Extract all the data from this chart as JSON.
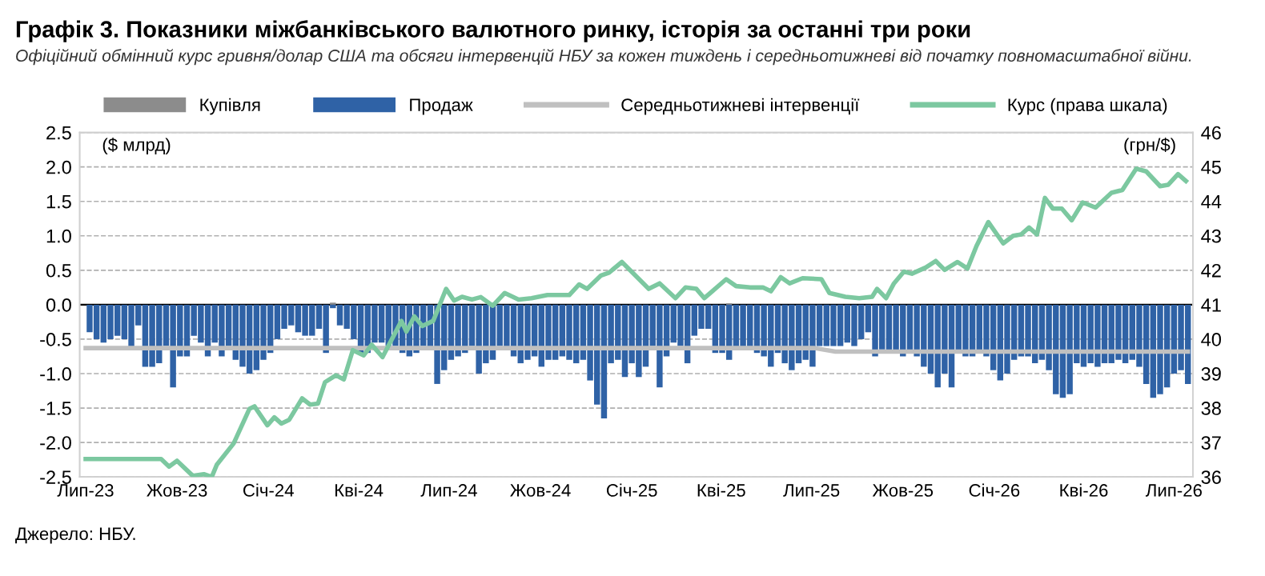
{
  "chart_data": {
    "type": "bar",
    "title": "Графік 3. Показники міжбанківського валютного ринку, історія за останні три роки",
    "subtitle": "Офіційний обмінний курс гривня/долар США та обсяги інтервенцій НБУ за кожен тиждень і середньотижневі від початку повномасштабної війни.",
    "ylabel": "($ млрд)",
    "y2label": "(грн/$)",
    "annotations": [
      "Джерело: НБУ."
    ],
    "x": [
      "2023-07-05",
      "2023-07-12",
      "2023-07-19",
      "2023-07-26",
      "2023-08-02",
      "2023-08-09",
      "2023-08-16",
      "2023-08-23",
      "2023-08-30",
      "2023-09-06",
      "2023-09-13",
      "2023-09-20",
      "2023-09-27",
      "2023-10-04",
      "2023-10-11",
      "2023-10-18",
      "2023-10-25",
      "2023-11-01",
      "2023-11-08",
      "2023-11-15",
      "2023-11-22",
      "2023-11-29",
      "2023-12-06",
      "2023-12-13",
      "2023-12-20",
      "2023-12-27",
      "2024-01-03",
      "2024-01-10",
      "2024-01-17",
      "2024-01-24",
      "2024-01-31",
      "2024-02-07",
      "2024-02-14",
      "2024-02-21",
      "2024-02-28",
      "2024-03-06",
      "2024-03-13",
      "2024-03-20",
      "2024-03-27",
      "2024-04-03",
      "2024-04-10",
      "2024-04-17",
      "2024-04-24",
      "2024-05-01",
      "2024-05-08",
      "2024-05-15",
      "2024-05-22",
      "2024-05-29",
      "2024-06-05",
      "2024-06-12",
      "2024-06-19",
      "2024-06-26",
      "2024-07-03",
      "2024-07-10",
      "2024-07-17",
      "2024-07-24",
      "2024-07-31",
      "2024-08-07",
      "2024-08-14",
      "2024-08-21",
      "2024-08-28",
      "2024-09-04",
      "2024-09-11",
      "2024-09-18",
      "2024-09-25",
      "2024-10-02",
      "2024-10-09",
      "2024-10-16",
      "2024-10-23",
      "2024-10-30",
      "2024-11-06",
      "2024-11-13",
      "2024-11-20",
      "2024-11-27",
      "2024-12-04",
      "2024-12-11",
      "2024-12-18",
      "2024-12-25",
      "2025-01-01",
      "2025-01-08",
      "2025-01-15",
      "2025-01-22",
      "2025-01-29",
      "2025-02-05",
      "2025-02-12",
      "2025-02-19",
      "2025-02-26",
      "2025-03-05",
      "2025-03-12",
      "2025-03-19",
      "2025-03-26",
      "2025-04-02",
      "2025-04-09",
      "2025-04-16",
      "2025-04-23",
      "2025-04-30",
      "2025-05-07",
      "2025-05-14",
      "2025-05-21",
      "2025-05-28",
      "2025-06-04",
      "2025-06-11",
      "2025-06-18",
      "2025-06-25",
      "2025-07-02",
      "2025-07-09",
      "2025-07-16",
      "2025-07-23",
      "2025-07-30",
      "2025-08-06",
      "2025-08-13",
      "2025-08-20",
      "2025-08-27",
      "2025-09-03",
      "2025-09-10",
      "2025-09-17",
      "2025-09-24",
      "2025-10-01",
      "2025-10-08",
      "2025-10-15",
      "2025-10-22",
      "2025-10-29",
      "2025-11-05",
      "2025-11-12",
      "2025-11-19",
      "2025-11-26",
      "2025-12-03",
      "2025-12-10",
      "2025-12-17",
      "2025-12-24",
      "2025-12-31",
      "2026-01-07",
      "2026-01-14",
      "2026-01-21",
      "2026-01-28",
      "2026-02-04",
      "2026-02-11",
      "2026-02-18",
      "2026-02-25",
      "2026-03-04",
      "2026-03-11",
      "2026-03-18",
      "2026-03-25",
      "2026-04-01",
      "2026-04-08",
      "2026-04-15",
      "2026-04-22",
      "2026-04-29",
      "2026-05-06",
      "2026-05-13",
      "2026-05-20",
      "2026-05-27",
      "2026-06-03",
      "2026-06-10",
      "2026-06-17",
      "2026-06-24",
      "2026-07-01",
      "2026-07-08",
      "2026-07-15"
    ],
    "series": [
      {
        "name": "Купівля",
        "color": "#8c8c8c",
        "x": [
          "2024-03-06",
          "2025-04-09"
        ],
        "values": [
          0.03,
          0.02
        ]
      },
      {
        "name": "Продаж",
        "color": "#2f62a6",
        "values": [
          -0.4,
          -0.5,
          -0.55,
          -0.5,
          -0.45,
          -0.5,
          -0.65,
          -0.3,
          -0.9,
          -0.9,
          -0.85,
          -0.6,
          -1.2,
          -0.75,
          -0.75,
          -0.45,
          -0.55,
          -0.75,
          -0.55,
          -0.75,
          -0.6,
          -0.8,
          -0.9,
          -1.0,
          -0.95,
          -0.8,
          -0.7,
          -0.5,
          -0.35,
          -0.3,
          -0.4,
          -0.45,
          -0.45,
          -0.35,
          -0.7,
          -0.05,
          -0.3,
          -0.35,
          -0.5,
          -0.7,
          -0.7,
          -0.55,
          -0.55,
          -0.6,
          -0.6,
          -0.7,
          -0.75,
          -0.7,
          -0.6,
          -0.65,
          -1.15,
          -0.95,
          -0.8,
          -0.75,
          -0.7,
          -0.6,
          -1.0,
          -0.85,
          -0.8,
          -0.6,
          -0.65,
          -0.75,
          -0.85,
          -0.8,
          -0.75,
          -0.9,
          -0.8,
          -0.8,
          -0.75,
          -0.8,
          -0.85,
          -0.8,
          -1.1,
          -1.45,
          -1.65,
          -0.85,
          -0.8,
          -1.05,
          -0.85,
          -1.05,
          -0.9,
          -0.6,
          -1.2,
          -0.75,
          -0.55,
          -0.6,
          -0.85,
          -0.45,
          -0.35,
          -0.35,
          -0.7,
          -0.7,
          -0.8,
          -0.65,
          -0.65,
          -0.65,
          -0.7,
          -0.75,
          -0.9,
          -0.7,
          -0.85,
          -0.95,
          -0.85,
          -0.8,
          -0.9,
          -0.6,
          -0.6,
          -0.6,
          -0.6,
          -0.55,
          -0.6,
          -0.5,
          -0.4,
          -0.75,
          -0.65,
          -0.7,
          -0.7,
          -0.75,
          -0.7,
          -0.75,
          -0.9,
          -1.0,
          -1.2,
          -1.0,
          -1.2,
          -0.7,
          -0.75,
          -0.75,
          -0.7,
          -0.75,
          -0.95,
          -1.1,
          -1.0,
          -0.8,
          -0.75,
          -0.75,
          -0.85,
          -0.8,
          -0.95,
          -1.3,
          -1.35,
          -1.3,
          -0.85,
          -0.9,
          -0.85,
          -0.9,
          -0.85,
          -0.85,
          -0.8,
          -0.85,
          -0.8,
          -0.9,
          -1.15,
          -1.35,
          -1.3,
          -1.2,
          -1.0,
          -0.95,
          -1.15
        ]
      },
      {
        "name": "Середньотижневі інтервенції",
        "type": "line",
        "color": "#c0c0c0",
        "x": [
          "2023-07-01",
          "2025-07-04",
          "2025-07-25",
          "2026-07-15"
        ],
        "values": [
          -0.63,
          -0.63,
          -0.68,
          -0.68
        ]
      },
      {
        "name": "Курс (права шкала)",
        "type": "line",
        "axis": "y2",
        "color": "#7cc8a0",
        "x": [
          "2023-07-01",
          "2023-09-15",
          "2023-09-23",
          "2023-10-01",
          "2023-10-17",
          "2023-10-28",
          "2023-11-05",
          "2023-11-10",
          "2023-11-27",
          "2023-12-13",
          "2023-12-18",
          "2023-12-31",
          "2024-01-07",
          "2024-01-14",
          "2024-01-22",
          "2024-02-04",
          "2024-02-12",
          "2024-02-20",
          "2024-02-27",
          "2024-03-09",
          "2024-03-17",
          "2024-03-26",
          "2024-04-06",
          "2024-04-14",
          "2024-04-25",
          "2024-05-14",
          "2024-05-19",
          "2024-05-27",
          "2024-06-04",
          "2024-06-15",
          "2024-06-28",
          "2024-07-06",
          "2024-07-14",
          "2024-07-24",
          "2024-08-02",
          "2024-08-14",
          "2024-08-26",
          "2024-09-09",
          "2024-09-22",
          "2024-10-08",
          "2024-10-30",
          "2024-11-09",
          "2024-11-17",
          "2024-12-01",
          "2024-12-09",
          "2024-12-22",
          "2025-01-18",
          "2025-01-29",
          "2025-02-14",
          "2025-02-24",
          "2025-03-07",
          "2025-03-15",
          "2025-03-23",
          "2025-04-06",
          "2025-04-16",
          "2025-04-30",
          "2025-05-13",
          "2025-05-21",
          "2025-05-31",
          "2025-06-09",
          "2025-06-22",
          "2025-07-11",
          "2025-07-19",
          "2025-08-04",
          "2025-08-18",
          "2025-08-31",
          "2025-09-05",
          "2025-09-14",
          "2025-09-22",
          "2025-10-02",
          "2025-10-10",
          "2025-10-24",
          "2025-11-03",
          "2025-11-12",
          "2025-11-25",
          "2025-12-05",
          "2025-12-14",
          "2025-12-26",
          "2026-01-10",
          "2026-01-20",
          "2026-01-28",
          "2026-02-05",
          "2026-02-13",
          "2026-02-21",
          "2026-03-01",
          "2026-03-10",
          "2026-03-20",
          "2026-03-31",
          "2026-04-13",
          "2026-04-29",
          "2026-05-10",
          "2026-05-24",
          "2026-06-03",
          "2026-06-17",
          "2026-06-25",
          "2026-07-05",
          "2026-07-13"
        ],
        "values": [
          36.52,
          36.52,
          36.3,
          36.47,
          36.03,
          36.08,
          36.0,
          36.35,
          36.97,
          37.98,
          38.05,
          37.5,
          37.73,
          37.55,
          37.66,
          38.28,
          38.1,
          38.13,
          38.75,
          38.95,
          38.83,
          39.68,
          39.53,
          39.84,
          39.48,
          40.53,
          40.22,
          40.66,
          40.38,
          40.53,
          41.46,
          41.12,
          41.23,
          41.15,
          41.22,
          40.97,
          41.34,
          41.15,
          41.19,
          41.28,
          41.28,
          41.59,
          41.46,
          41.85,
          41.93,
          42.24,
          41.46,
          41.62,
          41.19,
          41.5,
          41.46,
          41.19,
          41.39,
          41.74,
          41.54,
          41.5,
          41.5,
          41.39,
          41.8,
          41.62,
          41.77,
          41.74,
          41.34,
          41.23,
          41.19,
          41.23,
          41.46,
          41.19,
          41.62,
          41.96,
          41.9,
          42.08,
          42.27,
          42.01,
          42.24,
          42.05,
          42.7,
          43.4,
          42.78,
          43.0,
          43.04,
          43.24,
          43.04,
          44.1,
          43.79,
          43.79,
          43.45,
          43.97,
          43.82,
          44.25,
          44.33,
          44.95,
          44.87,
          44.44,
          44.48,
          44.79,
          44.59
        ]
      }
    ],
    "xlim": [
      "2023-06-25",
      "2026-07-20"
    ],
    "xticks": [
      {
        "value": "2023-07-01",
        "label": "Лип-23"
      },
      {
        "value": "2023-10-01",
        "label": "Жов-23"
      },
      {
        "value": "2024-01-01",
        "label": "Січ-24"
      },
      {
        "value": "2024-04-01",
        "label": "Кві-24"
      },
      {
        "value": "2024-07-01",
        "label": "Лип-24"
      },
      {
        "value": "2024-10-01",
        "label": "Жов-24"
      },
      {
        "value": "2025-01-01",
        "label": "Січ-25"
      },
      {
        "value": "2025-04-01",
        "label": "Кві-25"
      },
      {
        "value": "2025-07-01",
        "label": "Лип-25"
      },
      {
        "value": "2025-10-01",
        "label": "Жов-25"
      },
      {
        "value": "2026-01-01",
        "label": "Січ-26"
      },
      {
        "value": "2026-04-01",
        "label": "Кві-26"
      },
      {
        "value": "2026-07-01",
        "label": "Лип-26"
      }
    ],
    "ylim": [
      -2.5,
      2.5
    ],
    "yticks": [
      {
        "value": -2.5,
        "label": "-2.5"
      },
      {
        "value": -2.0,
        "label": "-2.0"
      },
      {
        "value": -1.5,
        "label": "-1.5"
      },
      {
        "value": -1.0,
        "label": "-1.0"
      },
      {
        "value": -0.5,
        "label": "-0.5"
      },
      {
        "value": 0,
        "label": "0.0"
      },
      {
        "value": 0.5,
        "label": "0.5"
      },
      {
        "value": 1.0,
        "label": "1.0"
      },
      {
        "value": 1.5,
        "label": "1.5"
      },
      {
        "value": 2.0,
        "label": "2.0"
      },
      {
        "value": 2.5,
        "label": "2.5"
      }
    ],
    "y2lim": [
      36,
      46
    ],
    "y2ticks": [
      36,
      37,
      38,
      39,
      40,
      41,
      42,
      43,
      44,
      45,
      46
    ],
    "ref_lines": [
      {
        "axis": "y",
        "value": 0,
        "color": "#000000"
      }
    ],
    "grid": "y",
    "legend": "top",
    "line_style": "solid",
    "marker": "none"
  }
}
